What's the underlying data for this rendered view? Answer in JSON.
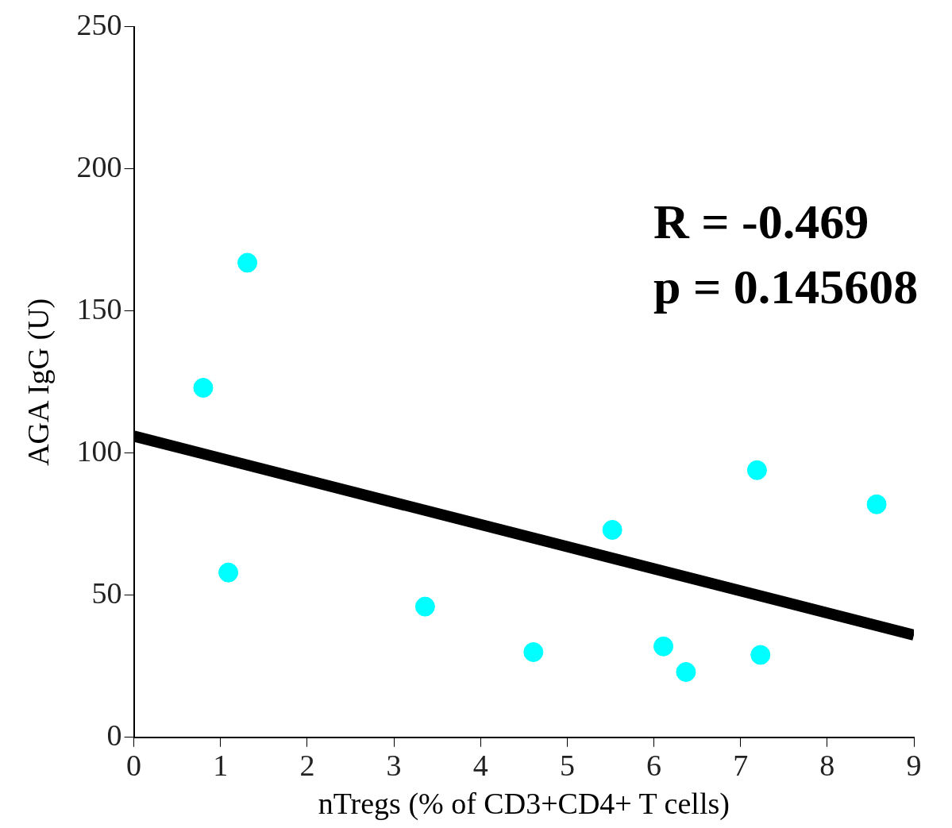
{
  "chart_data": {
    "type": "scatter",
    "xlabel": "nTregs (% of CD3+CD4+ T cells)",
    "ylabel": "AGA IgG (U)",
    "xlim": [
      0,
      9
    ],
    "xticks": [
      0,
      1,
      2,
      3,
      4,
      5,
      6,
      7,
      8,
      9
    ],
    "ylim": [
      0,
      250
    ],
    "yticks": [
      0,
      50,
      100,
      150,
      200,
      250
    ],
    "grid": false,
    "legend": false,
    "series": [
      {
        "type": "scatter",
        "marker": "circle",
        "color": "#00ffff",
        "x": [
          0.8,
          1.31,
          1.09,
          3.36,
          4.61,
          5.52,
          6.11,
          6.37,
          7.19,
          7.23,
          8.57
        ],
        "values": [
          123,
          167,
          58,
          46,
          30,
          73,
          32,
          23,
          94,
          29,
          82
        ]
      },
      {
        "type": "line",
        "marker": "none",
        "color": "#000000",
        "x": [
          0,
          9
        ],
        "values": [
          106,
          36
        ]
      }
    ],
    "annotations": [
      "R = -0.469",
      "p = 0.145608"
    ]
  }
}
